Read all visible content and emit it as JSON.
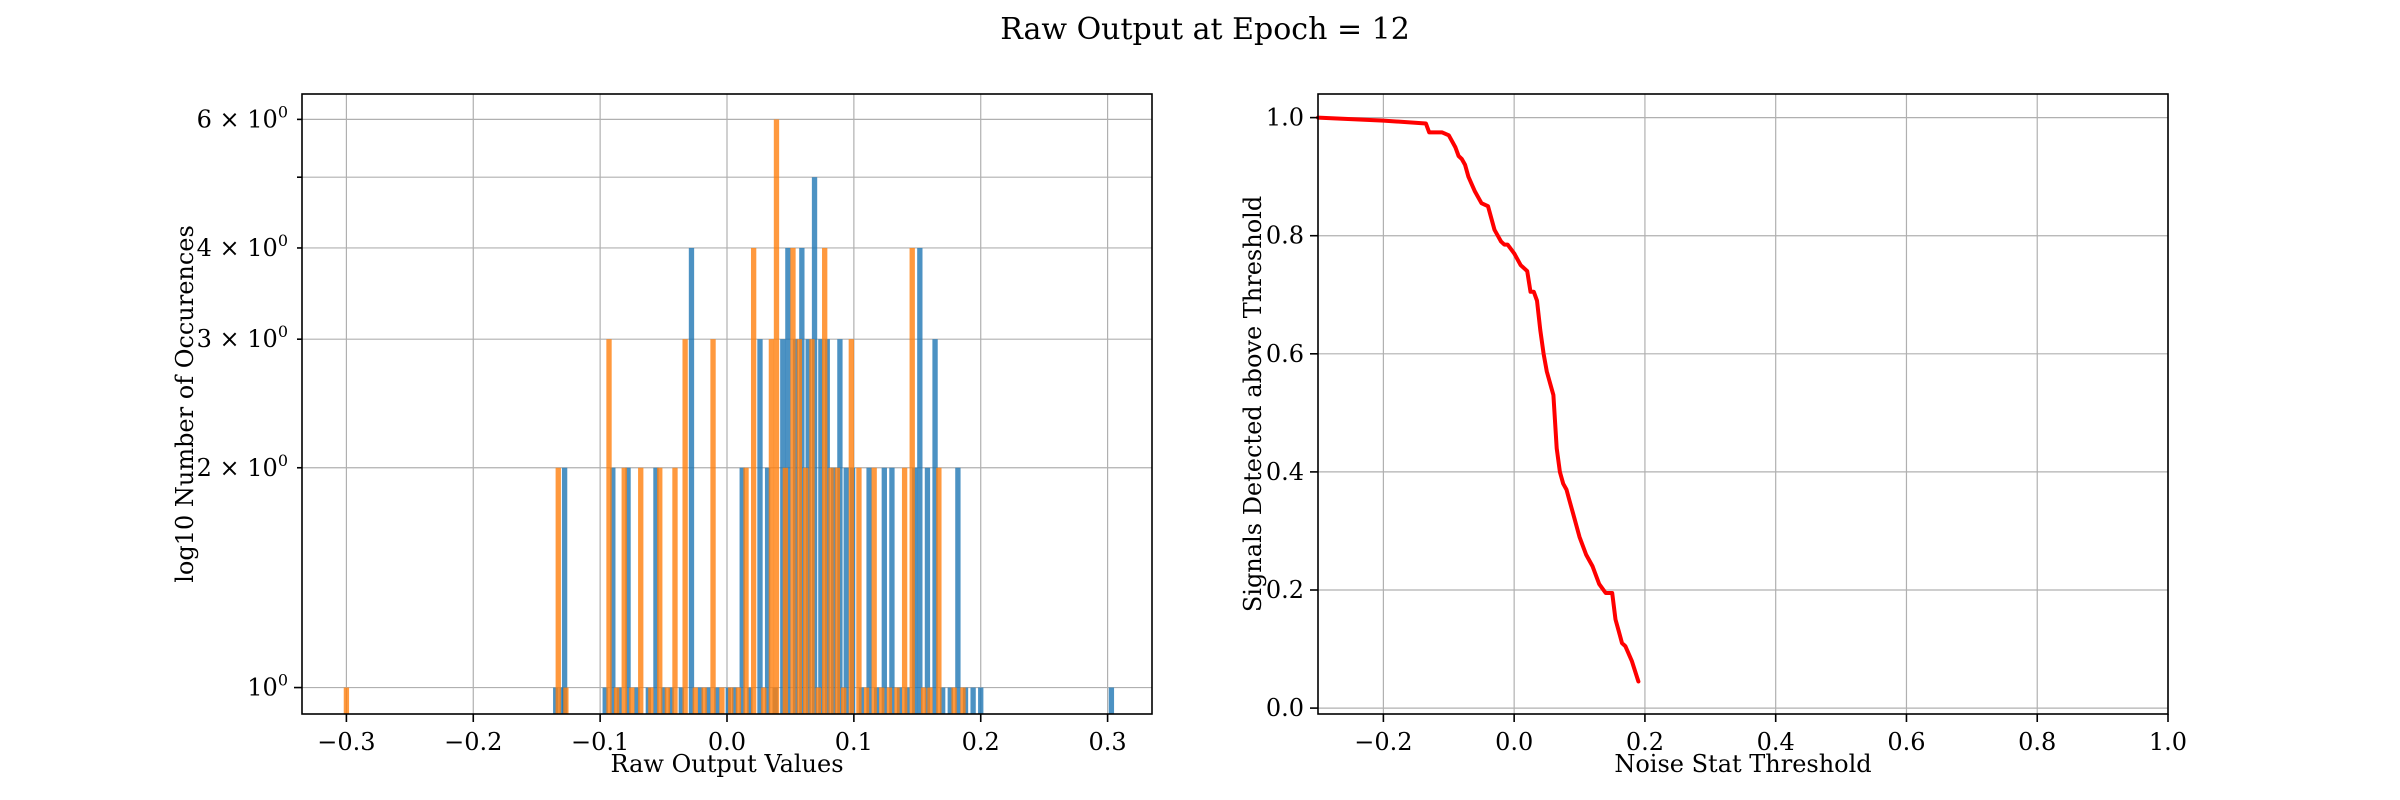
{
  "suptitle": "Raw Output at Epoch = 12",
  "colors": {
    "series_blue": "#1f77b4",
    "series_orange": "#ff7f0e",
    "curve": "#ff0000",
    "grid": "#b0b0b0"
  },
  "chart_data": [
    {
      "type": "bar",
      "subtype": "histogram",
      "title": "",
      "xlabel": "Raw Output Values",
      "ylabel": "log10 Number of Occurences",
      "yscale": "log",
      "grid": true,
      "xlim": [
        -0.335,
        0.335
      ],
      "ylim": [
        0.92,
        6.5
      ],
      "xticks": [
        -0.3,
        -0.2,
        -0.1,
        0.0,
        0.1,
        0.2,
        0.3
      ],
      "xtick_labels": [
        "−0.3",
        "−0.2",
        "−0.1",
        "0.0",
        "0.1",
        "0.2",
        "0.3"
      ],
      "yticks_major": [
        1
      ],
      "ytick_major_labels": [
        "10^0"
      ],
      "yticks_minor": [
        2,
        3,
        4,
        5,
        6
      ],
      "ytick_minor_labels": [
        "2 × 10^0",
        "3 × 10^0",
        "4 × 10^0",
        "",
        "6 × 10^0"
      ],
      "bin_width": 0.0042,
      "series": [
        {
          "color": "#1f77b4",
          "bins": [
            {
              "x": -0.135,
              "y": 1
            },
            {
              "x": -0.128,
              "y": 2
            },
            {
              "x": -0.13,
              "y": 1
            },
            {
              "x": -0.096,
              "y": 1
            },
            {
              "x": -0.09,
              "y": 2
            },
            {
              "x": -0.085,
              "y": 1
            },
            {
              "x": -0.078,
              "y": 2
            },
            {
              "x": -0.071,
              "y": 1
            },
            {
              "x": -0.062,
              "y": 1
            },
            {
              "x": -0.056,
              "y": 2
            },
            {
              "x": -0.05,
              "y": 1
            },
            {
              "x": -0.044,
              "y": 1
            },
            {
              "x": -0.036,
              "y": 1
            },
            {
              "x": -0.028,
              "y": 4
            },
            {
              "x": -0.021,
              "y": 1
            },
            {
              "x": -0.015,
              "y": 1
            },
            {
              "x": -0.008,
              "y": 1
            },
            {
              "x": 0.001,
              "y": 1
            },
            {
              "x": 0.006,
              "y": 1
            },
            {
              "x": 0.012,
              "y": 2
            },
            {
              "x": 0.018,
              "y": 1
            },
            {
              "x": 0.026,
              "y": 3
            },
            {
              "x": 0.032,
              "y": 2
            },
            {
              "x": 0.038,
              "y": 1
            },
            {
              "x": 0.044,
              "y": 3
            },
            {
              "x": 0.048,
              "y": 4
            },
            {
              "x": 0.054,
              "y": 3
            },
            {
              "x": 0.059,
              "y": 4
            },
            {
              "x": 0.064,
              "y": 3
            },
            {
              "x": 0.069,
              "y": 5
            },
            {
              "x": 0.074,
              "y": 3
            },
            {
              "x": 0.079,
              "y": 3
            },
            {
              "x": 0.084,
              "y": 2
            },
            {
              "x": 0.089,
              "y": 3
            },
            {
              "x": 0.094,
              "y": 2
            },
            {
              "x": 0.099,
              "y": 2
            },
            {
              "x": 0.106,
              "y": 1
            },
            {
              "x": 0.112,
              "y": 2
            },
            {
              "x": 0.118,
              "y": 1
            },
            {
              "x": 0.124,
              "y": 2
            },
            {
              "x": 0.13,
              "y": 2
            },
            {
              "x": 0.136,
              "y": 1
            },
            {
              "x": 0.142,
              "y": 1
            },
            {
              "x": 0.148,
              "y": 2
            },
            {
              "x": 0.152,
              "y": 4
            },
            {
              "x": 0.158,
              "y": 2
            },
            {
              "x": 0.164,
              "y": 3
            },
            {
              "x": 0.17,
              "y": 1
            },
            {
              "x": 0.176,
              "y": 1
            },
            {
              "x": 0.182,
              "y": 2
            },
            {
              "x": 0.188,
              "y": 1
            },
            {
              "x": 0.194,
              "y": 1
            },
            {
              "x": 0.2,
              "y": 1
            },
            {
              "x": 0.303,
              "y": 1
            }
          ]
        },
        {
          "color": "#ff7f0e",
          "bins": [
            {
              "x": -0.3,
              "y": 1
            },
            {
              "x": -0.133,
              "y": 2
            },
            {
              "x": -0.127,
              "y": 1
            },
            {
              "x": -0.093,
              "y": 3
            },
            {
              "x": -0.087,
              "y": 1
            },
            {
              "x": -0.081,
              "y": 2
            },
            {
              "x": -0.075,
              "y": 1
            },
            {
              "x": -0.068,
              "y": 2
            },
            {
              "x": -0.06,
              "y": 1
            },
            {
              "x": -0.053,
              "y": 2
            },
            {
              "x": -0.047,
              "y": 1
            },
            {
              "x": -0.041,
              "y": 2
            },
            {
              "x": -0.033,
              "y": 3
            },
            {
              "x": -0.025,
              "y": 1
            },
            {
              "x": -0.018,
              "y": 1
            },
            {
              "x": -0.011,
              "y": 3
            },
            {
              "x": -0.004,
              "y": 1
            },
            {
              "x": 0.003,
              "y": 1
            },
            {
              "x": 0.009,
              "y": 1
            },
            {
              "x": 0.015,
              "y": 2
            },
            {
              "x": 0.021,
              "y": 4
            },
            {
              "x": 0.029,
              "y": 1
            },
            {
              "x": 0.035,
              "y": 3
            },
            {
              "x": 0.039,
              "y": 6
            },
            {
              "x": 0.046,
              "y": 2
            },
            {
              "x": 0.052,
              "y": 4
            },
            {
              "x": 0.057,
              "y": 3
            },
            {
              "x": 0.062,
              "y": 2
            },
            {
              "x": 0.067,
              "y": 3
            },
            {
              "x": 0.072,
              "y": 1
            },
            {
              "x": 0.077,
              "y": 4
            },
            {
              "x": 0.082,
              "y": 2
            },
            {
              "x": 0.087,
              "y": 2
            },
            {
              "x": 0.092,
              "y": 1
            },
            {
              "x": 0.098,
              "y": 3
            },
            {
              "x": 0.104,
              "y": 2
            },
            {
              "x": 0.11,
              "y": 1
            },
            {
              "x": 0.116,
              "y": 2
            },
            {
              "x": 0.122,
              "y": 1
            },
            {
              "x": 0.128,
              "y": 1
            },
            {
              "x": 0.134,
              "y": 1
            },
            {
              "x": 0.14,
              "y": 2
            },
            {
              "x": 0.146,
              "y": 4
            },
            {
              "x": 0.155,
              "y": 1
            },
            {
              "x": 0.16,
              "y": 1
            },
            {
              "x": 0.167,
              "y": 2
            },
            {
              "x": 0.179,
              "y": 1
            },
            {
              "x": 0.186,
              "y": 1
            }
          ]
        }
      ]
    },
    {
      "type": "line",
      "title": "",
      "xlabel": "Noise Stat Threshold",
      "ylabel": "Signals Detected above Threshold",
      "grid": true,
      "xlim": [
        -0.3,
        1.0
      ],
      "ylim": [
        -0.01,
        1.04
      ],
      "xticks": [
        -0.2,
        0.0,
        0.2,
        0.4,
        0.6,
        0.8,
        1.0
      ],
      "xtick_labels": [
        "−0.2",
        "0.0",
        "0.2",
        "0.4",
        "0.6",
        "0.8",
        "1.0"
      ],
      "yticks": [
        0.0,
        0.2,
        0.4,
        0.6,
        0.8,
        1.0
      ],
      "ytick_labels": [
        "0.0",
        "0.2",
        "0.4",
        "0.6",
        "0.8",
        "1.0"
      ],
      "series": [
        {
          "color": "#ff0000",
          "x": [
            -0.3,
            -0.2,
            -0.135,
            -0.13,
            -0.11,
            -0.1,
            -0.09,
            -0.085,
            -0.08,
            -0.075,
            -0.07,
            -0.06,
            -0.05,
            -0.04,
            -0.03,
            -0.025,
            -0.02,
            -0.015,
            -0.01,
            0.0,
            0.01,
            0.02,
            0.025,
            0.03,
            0.035,
            0.04,
            0.045,
            0.05,
            0.055,
            0.06,
            0.065,
            0.07,
            0.075,
            0.08,
            0.085,
            0.09,
            0.1,
            0.11,
            0.12,
            0.13,
            0.14,
            0.15,
            0.155,
            0.16,
            0.165,
            0.17,
            0.18,
            0.19
          ],
          "y": [
            1.0,
            0.995,
            0.99,
            0.975,
            0.975,
            0.97,
            0.95,
            0.935,
            0.93,
            0.92,
            0.9,
            0.875,
            0.855,
            0.85,
            0.81,
            0.8,
            0.79,
            0.785,
            0.785,
            0.77,
            0.75,
            0.74,
            0.705,
            0.705,
            0.69,
            0.64,
            0.6,
            0.57,
            0.55,
            0.53,
            0.44,
            0.4,
            0.38,
            0.37,
            0.35,
            0.33,
            0.29,
            0.26,
            0.24,
            0.21,
            0.195,
            0.195,
            0.15,
            0.13,
            0.11,
            0.105,
            0.08,
            0.045
          ]
        }
      ]
    }
  ]
}
